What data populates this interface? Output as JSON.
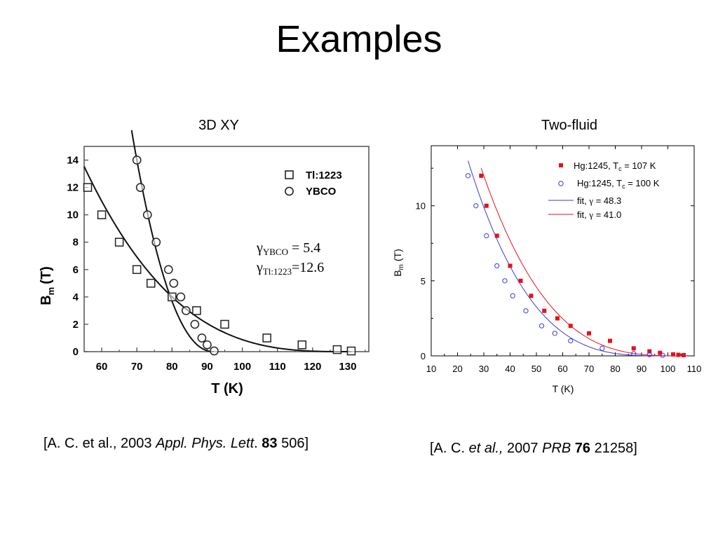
{
  "slide": {
    "title": "Examples",
    "left_heading": "3D XY",
    "right_heading": "Two-fluid",
    "left_ref": {
      "pre": "[A. C. et al., 2003 ",
      "journal": "Appl. Phys. Lett",
      "dot": ". ",
      "vol": "83",
      "post": " 506]"
    },
    "right_ref": {
      "pre": "[A. C. ",
      "etal": "et al.,",
      "year": " 2007 ",
      "journal": "PRB",
      "sp": " ",
      "vol": "76",
      "post": " 21258]"
    }
  },
  "chart_data": [
    {
      "type": "scatter",
      "xlabel": "T (K)",
      "ylabel": "B",
      "ylabel_sub": "m",
      "ylabel_post": "(T)",
      "xlim": [
        55,
        136
      ],
      "ylim": [
        0,
        15
      ],
      "xticks": [
        60,
        70,
        80,
        90,
        100,
        110,
        120,
        130
      ],
      "yticks": [
        0,
        2,
        4,
        6,
        8,
        10,
        12,
        14
      ],
      "legend_position": "top-right",
      "gamma": {
        "ybco_sym": "γ",
        "ybco_sub": "YBCO",
        "ybco_val": " = 5.4",
        "tl_sym": "γ",
        "tl_sub": "Tl:1223",
        "tl_val": "=12.6"
      },
      "series": [
        {
          "name": "Tl:1223",
          "marker": "square",
          "points": [
            [
              56,
              12
            ],
            [
              60,
              10
            ],
            [
              65,
              8
            ],
            [
              70,
              6
            ],
            [
              74,
              5
            ],
            [
              80,
              4
            ],
            [
              87,
              3
            ],
            [
              95,
              2
            ],
            [
              107,
              1
            ],
            [
              117,
              0.5
            ],
            [
              127,
              0.15
            ],
            [
              131,
              0.05
            ]
          ]
        },
        {
          "name": "YBCO",
          "marker": "circle",
          "points": [
            [
              70,
              14
            ],
            [
              71,
              12
            ],
            [
              73,
              10
            ],
            [
              75.5,
              8
            ],
            [
              79,
              6
            ],
            [
              80.5,
              5
            ],
            [
              82.5,
              4
            ],
            [
              84,
              3
            ],
            [
              86.5,
              2
            ],
            [
              88.5,
              1
            ],
            [
              90,
              0.5
            ],
            [
              92,
              0.05
            ]
          ]
        }
      ],
      "fit_curves": [
        {
          "series": "Tl:1223",
          "Tc": 131,
          "B0": 13.0,
          "Tref": 56,
          "n": 3.05,
          "x_start": 55,
          "x_end": 131
        },
        {
          "series": "YBCO",
          "Tc": 92,
          "B0": 14.0,
          "Tref": 70,
          "n": 2.2,
          "x_start": 68.5,
          "x_end": 92
        }
      ]
    },
    {
      "type": "scatter",
      "xlabel": "T (K)",
      "ylabel": "B",
      "ylabel_sub": "m",
      "ylabel_post": "(T)",
      "xlim": [
        10,
        110
      ],
      "ylim": [
        0,
        14
      ],
      "xticks": [
        10,
        20,
        30,
        40,
        50,
        60,
        70,
        80,
        90,
        100,
        110
      ],
      "yticks": [
        0,
        5,
        10
      ],
      "legend_position": "top-right",
      "series": [
        {
          "name": "Hg:1245, Tc = 107 K",
          "label_main": "Hg:1245, T",
          "label_sub": "c",
          "label_post": " = 107 K",
          "marker": "filled-square",
          "color": "#e8101a",
          "points": [
            [
              29,
              12
            ],
            [
              31,
              10
            ],
            [
              35,
              8
            ],
            [
              40,
              6
            ],
            [
              44,
              5
            ],
            [
              48,
              4
            ],
            [
              53,
              3
            ],
            [
              58,
              2.5
            ],
            [
              63,
              2
            ],
            [
              70,
              1.5
            ],
            [
              78,
              1
            ],
            [
              87,
              0.5
            ],
            [
              93,
              0.3
            ],
            [
              97,
              0.2
            ],
            [
              102,
              0.1
            ],
            [
              104,
              0.07
            ],
            [
              106,
              0.05
            ]
          ]
        },
        {
          "name": "Hg:1245, Tc = 100 K",
          "label_main": "Hg:1245, T",
          "label_sub": "c",
          "label_post": " = 100 K",
          "marker": "open-circle",
          "color": "#3a3adc",
          "points": [
            [
              24,
              12
            ],
            [
              27,
              10
            ],
            [
              31,
              8
            ],
            [
              35,
              6
            ],
            [
              38,
              5
            ],
            [
              41,
              4
            ],
            [
              46,
              3
            ],
            [
              52,
              2
            ],
            [
              57,
              1.5
            ],
            [
              63,
              1
            ],
            [
              75,
              0.5
            ],
            [
              87,
              0.15
            ],
            [
              93,
              0.08
            ],
            [
              98,
              0.04
            ]
          ]
        }
      ],
      "fits": [
        {
          "name": "fit, γ = 48.3",
          "label_pre": "fit, ",
          "label_sym": "γ",
          "label_post": " = 48.3",
          "color": "#3a3adc",
          "Tc": 100,
          "B0": 13.0,
          "Tref": 24,
          "n": 3.3,
          "x_start": 24,
          "x_end": 100
        },
        {
          "name": "fit, γ = 41.0",
          "label_pre": "fit, ",
          "label_sym": "γ",
          "label_post": " = 41.0",
          "color": "#e8101a",
          "Tc": 107,
          "B0": 12.5,
          "Tref": 29,
          "n": 3.2,
          "x_start": 29,
          "x_end": 107
        }
      ]
    }
  ]
}
